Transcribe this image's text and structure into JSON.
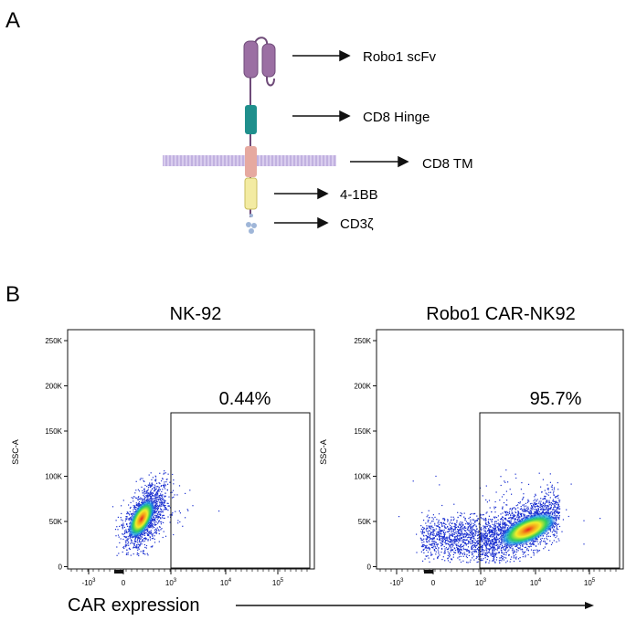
{
  "panel_a": {
    "label": "A",
    "components": [
      {
        "name": "Robo1 scFv"
      },
      {
        "name": "CD8 Hinge"
      },
      {
        "name": "CD8 TM"
      },
      {
        "name": "4-1BB"
      },
      {
        "name": "CD3ζ"
      }
    ],
    "colors": {
      "scfv": "#9b6fa3",
      "scfv_stroke": "#6e4a78",
      "hinge": "#1f8f8c",
      "tm": "#e6a9a0",
      "bb": "#f3eba2",
      "cd3z": "#9fb6d8",
      "membrane": "#c7b8e2"
    }
  },
  "panel_b": {
    "label": "B",
    "x_axis_label": "CAR expression",
    "y_axis_title": "SSC-A",
    "y_ticks": [
      "250K",
      "200K",
      "150K",
      "100K",
      "50K",
      "0"
    ],
    "x_ticks": [
      {
        "base": "-10",
        "exp": "3"
      },
      {
        "base": "0",
        "exp": ""
      },
      {
        "base": "10",
        "exp": "3"
      },
      {
        "base": "10",
        "exp": "4"
      },
      {
        "base": "10",
        "exp": "5"
      }
    ],
    "plots": [
      {
        "title": "NK-92",
        "gate_percent": "0.44%"
      },
      {
        "title": "Robo1 CAR-NK92",
        "gate_percent": "95.7%"
      }
    ]
  },
  "chart_data": [
    {
      "type": "scatter",
      "title": "NK-92",
      "xlabel": "CAR expression",
      "ylabel": "SSC-A",
      "yticks": [
        "0",
        "50K",
        "100K",
        "150K",
        "200K",
        "250K"
      ],
      "ylim": [
        0,
        260000
      ],
      "gate": {
        "label": "0.44%",
        "x_from": "10^3",
        "y_to": 170000
      },
      "population_center": {
        "x": "~0 to 10^2.5",
        "y": 40000
      }
    },
    {
      "type": "scatter",
      "title": "Robo1 CAR-NK92",
      "xlabel": "CAR expression",
      "ylabel": "SSC-A",
      "yticks": [
        "0",
        "50K",
        "100K",
        "150K",
        "200K",
        "250K"
      ],
      "ylim": [
        0,
        260000
      ],
      "gate": {
        "label": "95.7%",
        "x_from": "10^3",
        "y_to": 170000
      },
      "population_center": {
        "x": "~10^3.7",
        "y": 35000
      }
    }
  ]
}
